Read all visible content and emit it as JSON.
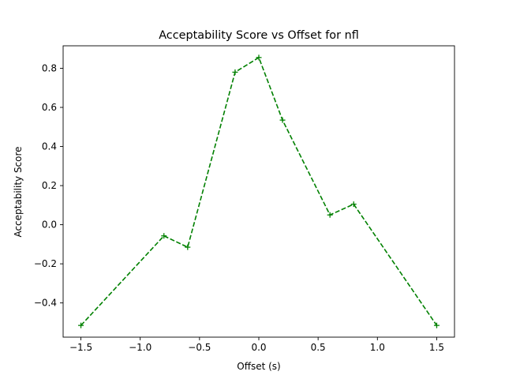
{
  "chart_data": {
    "type": "line",
    "title": "Acceptability Score vs Offset for nfl",
    "xlabel": "Offset (s)",
    "ylabel": "Acceptability Score",
    "xlim": [
      -1.65,
      1.65
    ],
    "ylim": [
      -0.575,
      0.915
    ],
    "xticks": [
      -1.5,
      -1.0,
      -0.5,
      0.0,
      0.5,
      1.0,
      1.5
    ],
    "xtick_labels": [
      "−1.5",
      "−1.0",
      "−0.5",
      "0.0",
      "0.5",
      "1.0",
      "1.5"
    ],
    "yticks": [
      -0.4,
      -0.2,
      0.0,
      0.2,
      0.4,
      0.6,
      0.8
    ],
    "ytick_labels": [
      "−0.4",
      "−0.2",
      "0.0",
      "0.2",
      "0.4",
      "0.6",
      "0.8"
    ],
    "grid": false,
    "series": [
      {
        "color": "#008000",
        "line_style": "dashed",
        "marker": "plus",
        "x": [
          -1.5,
          -0.8,
          -0.6,
          -0.2,
          0.0,
          0.2,
          0.6,
          0.8,
          1.5
        ],
        "y": [
          -0.515,
          -0.057,
          -0.115,
          0.78,
          0.855,
          0.535,
          0.05,
          0.105,
          -0.515
        ]
      }
    ]
  }
}
